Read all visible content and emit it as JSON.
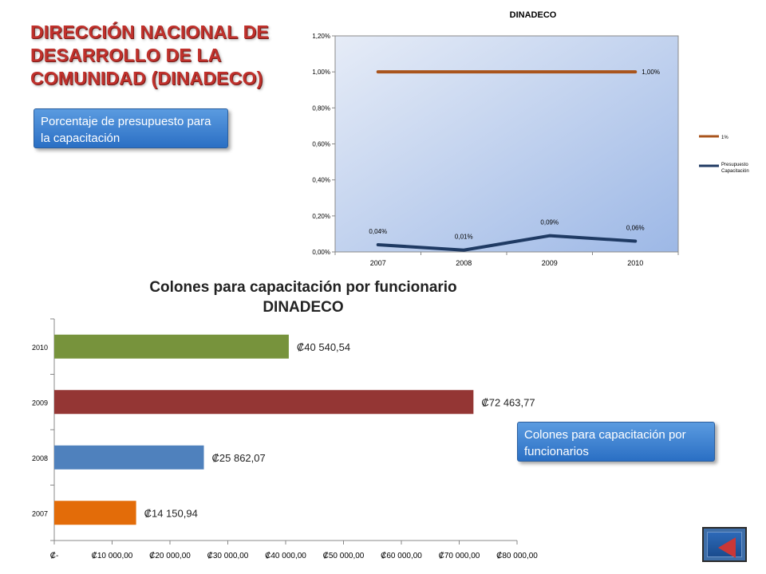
{
  "slide": {
    "title": "DIRECCIÓN NACIONAL DE DESARROLLO DE LA COMUNIDAD (DINADECO)",
    "callout_budget": "Porcentaje de presupuesto para la capacitación",
    "callout_colones": "Colones para capacitación por funcionarios"
  },
  "chart_data": [
    {
      "type": "line",
      "title": "DINADECO",
      "categories": [
        "2007",
        "2008",
        "2009",
        "2010"
      ],
      "series": [
        {
          "name": "1%",
          "values": [
            1.0,
            1.0,
            1.0,
            1.0
          ],
          "labels": [
            "",
            "",
            "",
            "1,00%"
          ],
          "color": "#a9541c"
        },
        {
          "name": "Presupuesto Capacitación",
          "values": [
            0.04,
            0.01,
            0.09,
            0.06
          ],
          "labels": [
            "0,04%",
            "0,01%",
            "0,09%",
            "0,06%"
          ],
          "color": "#1f3a63"
        }
      ],
      "ylim": [
        0,
        1.2
      ],
      "ytick_values": [
        0,
        0.2,
        0.4,
        0.6,
        0.8,
        1.0,
        1.2
      ],
      "ytick_labels": [
        "0,00%",
        "0,20%",
        "0,40%",
        "0,60%",
        "0,80%",
        "1,00%",
        "1,20%"
      ],
      "legend": "right",
      "grid": false
    },
    {
      "type": "bar",
      "orientation": "horizontal",
      "title_lines": [
        "Colones para capacitación por funcionario",
        "DINADECO"
      ],
      "categories": [
        "2007",
        "2008",
        "2009",
        "2010"
      ],
      "values": [
        14150.94,
        25862.07,
        72463.77,
        40540.54
      ],
      "value_labels": [
        "₡14 150,94",
        "₡25 862,07",
        "₡72 463,77",
        "₡40 540,54"
      ],
      "colors": [
        "#e36c09",
        "#4f81bd",
        "#943634",
        "#77933c"
      ],
      "xlim": [
        0,
        80000
      ],
      "xtick_values": [
        0,
        10000,
        20000,
        30000,
        40000,
        50000,
        60000,
        70000,
        80000
      ],
      "xtick_labels": [
        "₡-",
        "₡10 000,00",
        "₡20 000,00",
        "₡30 000,00",
        "₡40 000,00",
        "₡50 000,00",
        "₡60 000,00",
        "₡70 000,00",
        "₡80 000,00"
      ],
      "grid": false
    }
  ]
}
